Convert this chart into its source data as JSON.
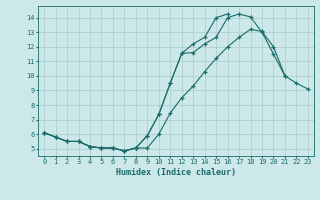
{
  "xlabel": "Humidex (Indice chaleur)",
  "background_color": "#cce8e8",
  "grid_color": "#b0d0d0",
  "line_color": "#1a6b6b",
  "xlim": [
    -0.5,
    23.5
  ],
  "ylim": [
    4.5,
    14.8
  ],
  "xticks": [
    0,
    1,
    2,
    3,
    4,
    5,
    6,
    7,
    8,
    9,
    10,
    11,
    12,
    13,
    14,
    15,
    16,
    17,
    18,
    19,
    20,
    21,
    22,
    23
  ],
  "yticks": [
    5,
    6,
    7,
    8,
    9,
    10,
    11,
    12,
    13,
    14
  ],
  "curve1_x": [
    0,
    1,
    2,
    3,
    4,
    5,
    6,
    7,
    8,
    9,
    10,
    11,
    12,
    13,
    14,
    15,
    16,
    17,
    18,
    19,
    20,
    21
  ],
  "curve1_y": [
    6.1,
    5.8,
    5.5,
    5.5,
    5.15,
    5.05,
    5.05,
    4.85,
    5.05,
    5.9,
    7.35,
    9.5,
    11.55,
    11.6,
    12.2,
    12.65,
    14.0,
    14.25,
    14.05,
    13.0,
    11.5,
    10.0
  ],
  "curve2_x": [
    0,
    1,
    2,
    3,
    4,
    5,
    6,
    7,
    8,
    9,
    10,
    11,
    12,
    13,
    14,
    15,
    16,
    17,
    18,
    19,
    20,
    21,
    22,
    23
  ],
  "curve2_y": [
    6.1,
    5.8,
    5.5,
    5.5,
    5.15,
    5.05,
    5.05,
    4.85,
    5.05,
    5.05,
    6.0,
    7.45,
    8.5,
    9.3,
    10.3,
    11.2,
    12.0,
    12.65,
    13.2,
    13.05,
    12.0,
    10.0,
    9.5,
    9.1
  ],
  "curve3_x": [
    0,
    1,
    2,
    3,
    4,
    5,
    6,
    7,
    8,
    9,
    10,
    11,
    12,
    13,
    14,
    15,
    16
  ],
  "curve3_y": [
    6.1,
    5.8,
    5.5,
    5.5,
    5.15,
    5.05,
    5.05,
    4.85,
    5.05,
    5.9,
    7.35,
    9.5,
    11.55,
    12.2,
    12.65,
    14.0,
    14.25
  ]
}
